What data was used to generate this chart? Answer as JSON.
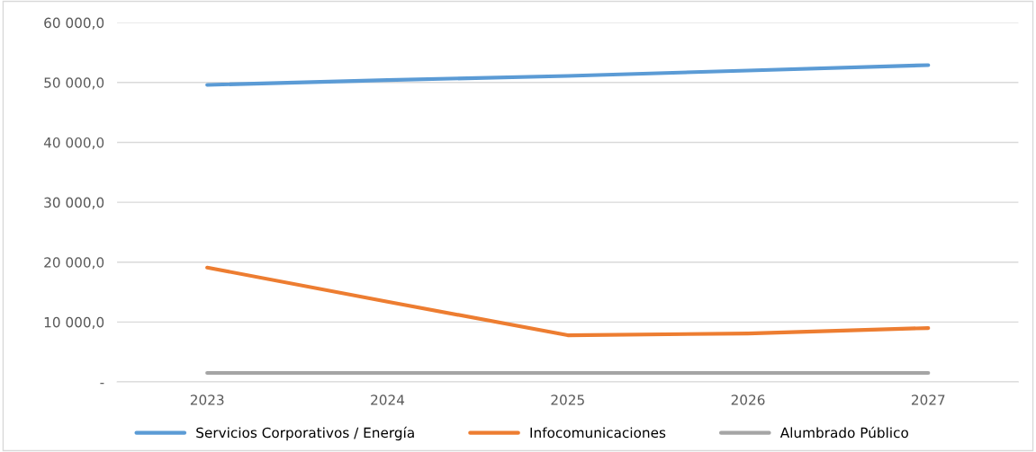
{
  "chart_data": {
    "type": "line",
    "categories": [
      "2023",
      "2024",
      "2025",
      "2026",
      "2027"
    ],
    "series": [
      {
        "name": "Servicios Corporativos / Energía",
        "color": "#5b9bd5",
        "values": [
          49600,
          50400,
          51100,
          52000,
          52900
        ]
      },
      {
        "name": "Infocomunicaciones",
        "color": "#ed7d31",
        "values": [
          19100,
          13400,
          7800,
          8100,
          9000
        ]
      },
      {
        "name": "Alumbrado Público",
        "color": "#a5a5a5",
        "values": [
          1500,
          1500,
          1500,
          1500,
          1500
        ]
      }
    ],
    "ylim": [
      0,
      60000
    ],
    "yticks": [
      {
        "value": 0,
        "label": "-"
      },
      {
        "value": 10000,
        "label": "10 000,0"
      },
      {
        "value": 20000,
        "label": "20 000,0"
      },
      {
        "value": 30000,
        "label": "30 000,0"
      },
      {
        "value": 40000,
        "label": "40 000,0"
      },
      {
        "value": 50000,
        "label": "50 000,0"
      },
      {
        "value": 60000,
        "label": "60 000,0"
      }
    ],
    "grid": "y",
    "legend": "bottom",
    "marker": "none",
    "line_style": "solid"
  }
}
